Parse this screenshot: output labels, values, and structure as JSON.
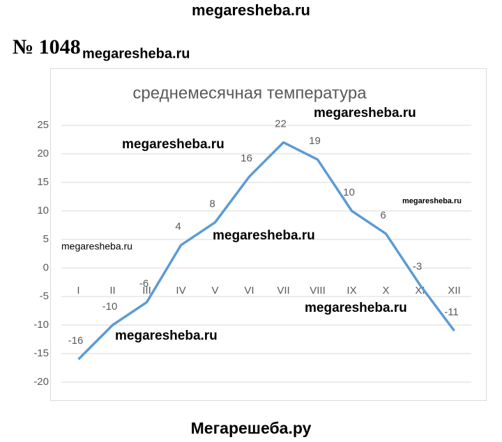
{
  "header": {
    "site": "megaresheba.ru",
    "task": "№ 1048",
    "task_sub": "megaresheba.ru"
  },
  "watermarks": [
    "megaresheba.ru",
    "megaresheba.ru",
    "megaresheba.ru",
    "megaresheba.ru",
    "megaresheba.ru",
    "megaresheba.ru",
    "megaresheba.ru"
  ],
  "footer": "Мегарешеба.ру",
  "chart_data": {
    "type": "line",
    "title": "среднемесячная температура",
    "categories": [
      "I",
      "II",
      "III",
      "IV",
      "V",
      "VI",
      "VII",
      "VIII",
      "IX",
      "X",
      "XI",
      "XII"
    ],
    "values": [
      -16,
      -10,
      -6,
      4,
      8,
      16,
      22,
      19,
      10,
      6,
      -3,
      -11
    ],
    "color": "#5b9bd5",
    "ylim": [
      -20,
      25
    ],
    "yticks": [
      -20,
      -15,
      -10,
      -5,
      0,
      5,
      10,
      15,
      20,
      25
    ],
    "grid": true
  }
}
